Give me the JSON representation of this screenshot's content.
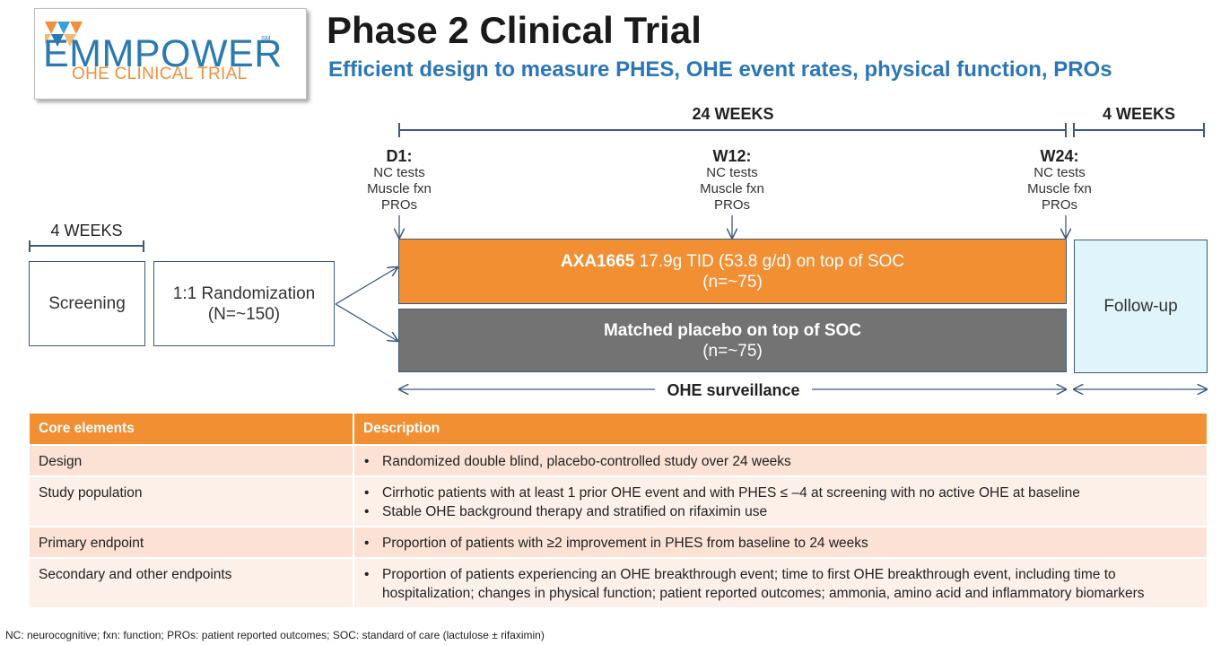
{
  "logo": {
    "name": "EMMPOWER",
    "sm": "SM",
    "subtitle": "OHE CLINICAL TRIAL"
  },
  "title": "Phase 2 Clinical Trial",
  "subtitle": "Efficient design to measure PHES, OHE event rates, physical function, PROs",
  "timeline": {
    "screening_duration": "4 WEEKS",
    "treatment_duration": "24 WEEKS",
    "followup_duration": "4 WEEKS",
    "timepoints": [
      {
        "label": "D1:",
        "items": [
          "NC tests",
          "Muscle fxn",
          "PROs"
        ]
      },
      {
        "label": "W12:",
        "items": [
          "NC tests",
          "Muscle fxn",
          "PROs"
        ]
      },
      {
        "label": "W24:",
        "items": [
          "NC tests",
          "Muscle fxn",
          "PROs"
        ]
      }
    ]
  },
  "boxes": {
    "screening": "Screening",
    "randomization_line1": "1:1 Randomization",
    "randomization_line2": "(N=~150)",
    "followup": "Follow-up"
  },
  "arms": {
    "active_drug": "AXA1665",
    "active_rest": " 17.9g TID (53.8 g/d) on top of SOC",
    "active_n": "(n=~75)",
    "placebo_label": "Matched placebo on top of SOC",
    "placebo_n": "(n=~75)"
  },
  "surveillance": "OHE surveillance",
  "table": {
    "headers": [
      "Core elements",
      "Description"
    ],
    "rows": [
      {
        "element": "Design",
        "bullets": [
          "Randomized double blind, placebo-controlled study over 24 weeks"
        ]
      },
      {
        "element": "Study population",
        "bullets": [
          "Cirrhotic patients with at least 1 prior OHE event and with PHES ≤ –4 at screening with no active OHE at baseline",
          "Stable OHE background therapy and stratified on rifaximin use"
        ]
      },
      {
        "element": "Primary endpoint",
        "bullets": [
          "Proportion of patients with ≥2 improvement in PHES from baseline to 24 weeks"
        ]
      },
      {
        "element": "Secondary and other endpoints",
        "bullets": [
          "Proportion of patients experiencing an OHE breakthrough event; time to first OHE breakthrough event, including time to hospitalization; changes in physical function; patient reported outcomes; ammonia, amino acid and inflammatory biomarkers"
        ]
      }
    ]
  },
  "footnote": "NC: neurocognitive; fxn: function; PROs: patient reported outcomes; SOC: standard of care (lactulose ± rifaximin)",
  "colors": {
    "orange": "#f28f33",
    "blue": "#2b76b9",
    "gray": "#737373",
    "followup_bg": "#dff4fb",
    "line": "#3e5a7a"
  }
}
